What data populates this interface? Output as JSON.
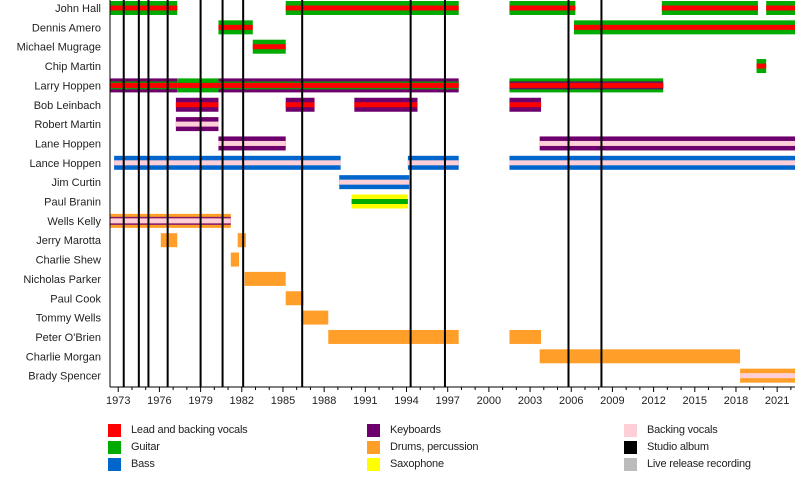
{
  "chart_data": {
    "type": "timeline",
    "title": "",
    "xlabel": "",
    "ylabel": "",
    "xlim": [
      1972.4,
      2022.3
    ],
    "x_ticks": [
      "1973",
      "1976",
      "1979",
      "1982",
      "1985",
      "1988",
      "1991",
      "1994",
      "1997",
      "2000",
      "2003",
      "2006",
      "2009",
      "2012",
      "2015",
      "2018",
      "2021"
    ],
    "x_tick_values": [
      1973,
      1976,
      1979,
      1982,
      1985,
      1988,
      1991,
      1994,
      1997,
      2000,
      2003,
      2006,
      2009,
      2012,
      2015,
      2018,
      2021
    ],
    "colors": {
      "lead_vocals": "#ff0000",
      "guitar": "#00aa00",
      "bass": "#0066cc",
      "keyboards": "#6e006e",
      "drums": "#ff9f2a",
      "saxophone": "#ffff00",
      "backing_vocals": "#ffcfd8",
      "studio_album": "#000000",
      "live_recording": "#bbbbbb"
    },
    "members": [
      {
        "name": "John Hall",
        "periods": [
          {
            "start": 1972.4,
            "end": 1977.3,
            "main": "guitar",
            "stripe": "lead_vocals"
          },
          {
            "start": 1985.2,
            "end": 1997.8,
            "main": "guitar",
            "stripe": "lead_vocals"
          },
          {
            "start": 2001.5,
            "end": 2006.3,
            "main": "guitar",
            "stripe": "lead_vocals"
          },
          {
            "start": 2012.6,
            "end": 2019.6,
            "main": "guitar",
            "stripe": "lead_vocals"
          },
          {
            "start": 2020.2,
            "end": 2022.3,
            "main": "guitar",
            "stripe": "lead_vocals"
          }
        ]
      },
      {
        "name": "Dennis Amero",
        "periods": [
          {
            "start": 1980.3,
            "end": 1982.8,
            "main": "guitar",
            "stripe": "lead_vocals"
          },
          {
            "start": 2006.2,
            "end": 2022.3,
            "main": "guitar",
            "stripe": "lead_vocals"
          }
        ]
      },
      {
        "name": "Michael Mugrage",
        "periods": [
          {
            "start": 1982.8,
            "end": 1985.2,
            "main": "guitar",
            "stripe": "lead_vocals"
          }
        ]
      },
      {
        "name": "Chip Martin",
        "periods": [
          {
            "start": 2019.5,
            "end": 2020.2,
            "main": "guitar",
            "stripe": "lead_vocals"
          }
        ]
      },
      {
        "name": "Larry Hoppen",
        "periods": [
          {
            "start": 1972.4,
            "end": 1977.3,
            "main": "keyboards",
            "mid": "guitar",
            "stripe": "lead_vocals"
          },
          {
            "start": 1977.3,
            "end": 1980.3,
            "main": "guitar",
            "stripe": "lead_vocals"
          },
          {
            "start": 1980.3,
            "end": 1997.8,
            "main": "keyboards",
            "mid": "guitar",
            "stripe": "lead_vocals"
          },
          {
            "start": 2001.5,
            "end": 2012.7,
            "main": "guitar",
            "mid": "keyboards",
            "stripe": "lead_vocals"
          }
        ]
      },
      {
        "name": "Bob Leinbach",
        "periods": [
          {
            "start": 1977.2,
            "end": 1980.3,
            "main": "keyboards",
            "stripe": "lead_vocals"
          },
          {
            "start": 1985.2,
            "end": 1987.3,
            "main": "keyboards",
            "stripe": "lead_vocals"
          },
          {
            "start": 1990.2,
            "end": 1994.8,
            "main": "keyboards",
            "stripe": "lead_vocals"
          },
          {
            "start": 2001.5,
            "end": 2003.8,
            "main": "keyboards",
            "stripe": "lead_vocals"
          }
        ]
      },
      {
        "name": "Robert Martin",
        "periods": [
          {
            "start": 1977.2,
            "end": 1980.3,
            "main": "keyboards",
            "stripe": "backing_vocals"
          }
        ]
      },
      {
        "name": "Lane Hoppen",
        "periods": [
          {
            "start": 1980.3,
            "end": 1985.2,
            "main": "keyboards",
            "stripe": "backing_vocals"
          },
          {
            "start": 2003.7,
            "end": 2022.3,
            "main": "keyboards",
            "stripe": "backing_vocals"
          }
        ]
      },
      {
        "name": "Lance Hoppen",
        "periods": [
          {
            "start": 1972.7,
            "end": 1989.2,
            "main": "bass",
            "stripe": "backing_vocals"
          },
          {
            "start": 1994.1,
            "end": 1997.8,
            "main": "bass",
            "stripe": "backing_vocals"
          },
          {
            "start": 2001.5,
            "end": 2022.3,
            "main": "bass",
            "stripe": "backing_vocals"
          }
        ]
      },
      {
        "name": "Jim Curtin",
        "periods": [
          {
            "start": 1989.1,
            "end": 1994.2,
            "main": "bass",
            "stripe": "backing_vocals"
          }
        ]
      },
      {
        "name": "Paul Branin",
        "periods": [
          {
            "start": 1990.0,
            "end": 1994.1,
            "main": "saxophone",
            "stripe": "guitar"
          }
        ]
      },
      {
        "name": "Wells Kelly",
        "periods": [
          {
            "start": 1972.4,
            "end": 1981.2,
            "main": "drums",
            "mid": "keyboards",
            "stripe": "backing_vocals"
          }
        ]
      },
      {
        "name": "Jerry Marotta",
        "periods": [
          {
            "start": 1976.1,
            "end": 1977.3,
            "main": "drums"
          },
          {
            "start": 1981.7,
            "end": 1982.3,
            "main": "drums"
          }
        ]
      },
      {
        "name": "Charlie Shew",
        "periods": [
          {
            "start": 1981.2,
            "end": 1981.8,
            "main": "drums"
          }
        ]
      },
      {
        "name": "Nicholas Parker",
        "periods": [
          {
            "start": 1982.2,
            "end": 1985.2,
            "main": "drums"
          }
        ]
      },
      {
        "name": "Paul Cook",
        "periods": [
          {
            "start": 1985.2,
            "end": 1986.5,
            "main": "drums"
          }
        ]
      },
      {
        "name": "Tommy Wells",
        "periods": [
          {
            "start": 1986.4,
            "end": 1988.3,
            "main": "drums"
          }
        ]
      },
      {
        "name": "Peter O'Brien",
        "periods": [
          {
            "start": 1988.3,
            "end": 1997.8,
            "main": "drums"
          },
          {
            "start": 2001.5,
            "end": 2003.8,
            "main": "drums"
          }
        ]
      },
      {
        "name": "Charlie Morgan",
        "periods": [
          {
            "start": 2003.7,
            "end": 2018.3,
            "main": "drums"
          }
        ]
      },
      {
        "name": "Brady Spencer",
        "periods": [
          {
            "start": 2018.3,
            "end": 2022.3,
            "main": "drums",
            "stripe": "backing_vocals"
          }
        ]
      }
    ],
    "studio_albums": [
      1973.4,
      1974.5,
      1975.2,
      1976.6,
      1979.0,
      1980.6,
      1982.1,
      1986.4,
      1994.3,
      1996.8,
      2005.8,
      2008.2
    ],
    "legend": [
      {
        "label": "Lead and backing vocals",
        "key": "lead_vocals",
        "column": 0
      },
      {
        "label": "Guitar",
        "key": "guitar",
        "column": 0
      },
      {
        "label": "Bass",
        "key": "bass",
        "column": 0
      },
      {
        "label": "Keyboards",
        "key": "keyboards",
        "column": 1
      },
      {
        "label": "Drums, percussion",
        "key": "drums",
        "column": 1
      },
      {
        "label": "Saxophone",
        "key": "saxophone",
        "column": 1
      },
      {
        "label": "Backing vocals",
        "key": "backing_vocals",
        "column": 2
      },
      {
        "label": "Studio album",
        "key": "studio_album",
        "column": 2
      },
      {
        "label": "Live release recording",
        "key": "live_recording",
        "column": 2
      }
    ],
    "legend_placement": "bottom"
  }
}
